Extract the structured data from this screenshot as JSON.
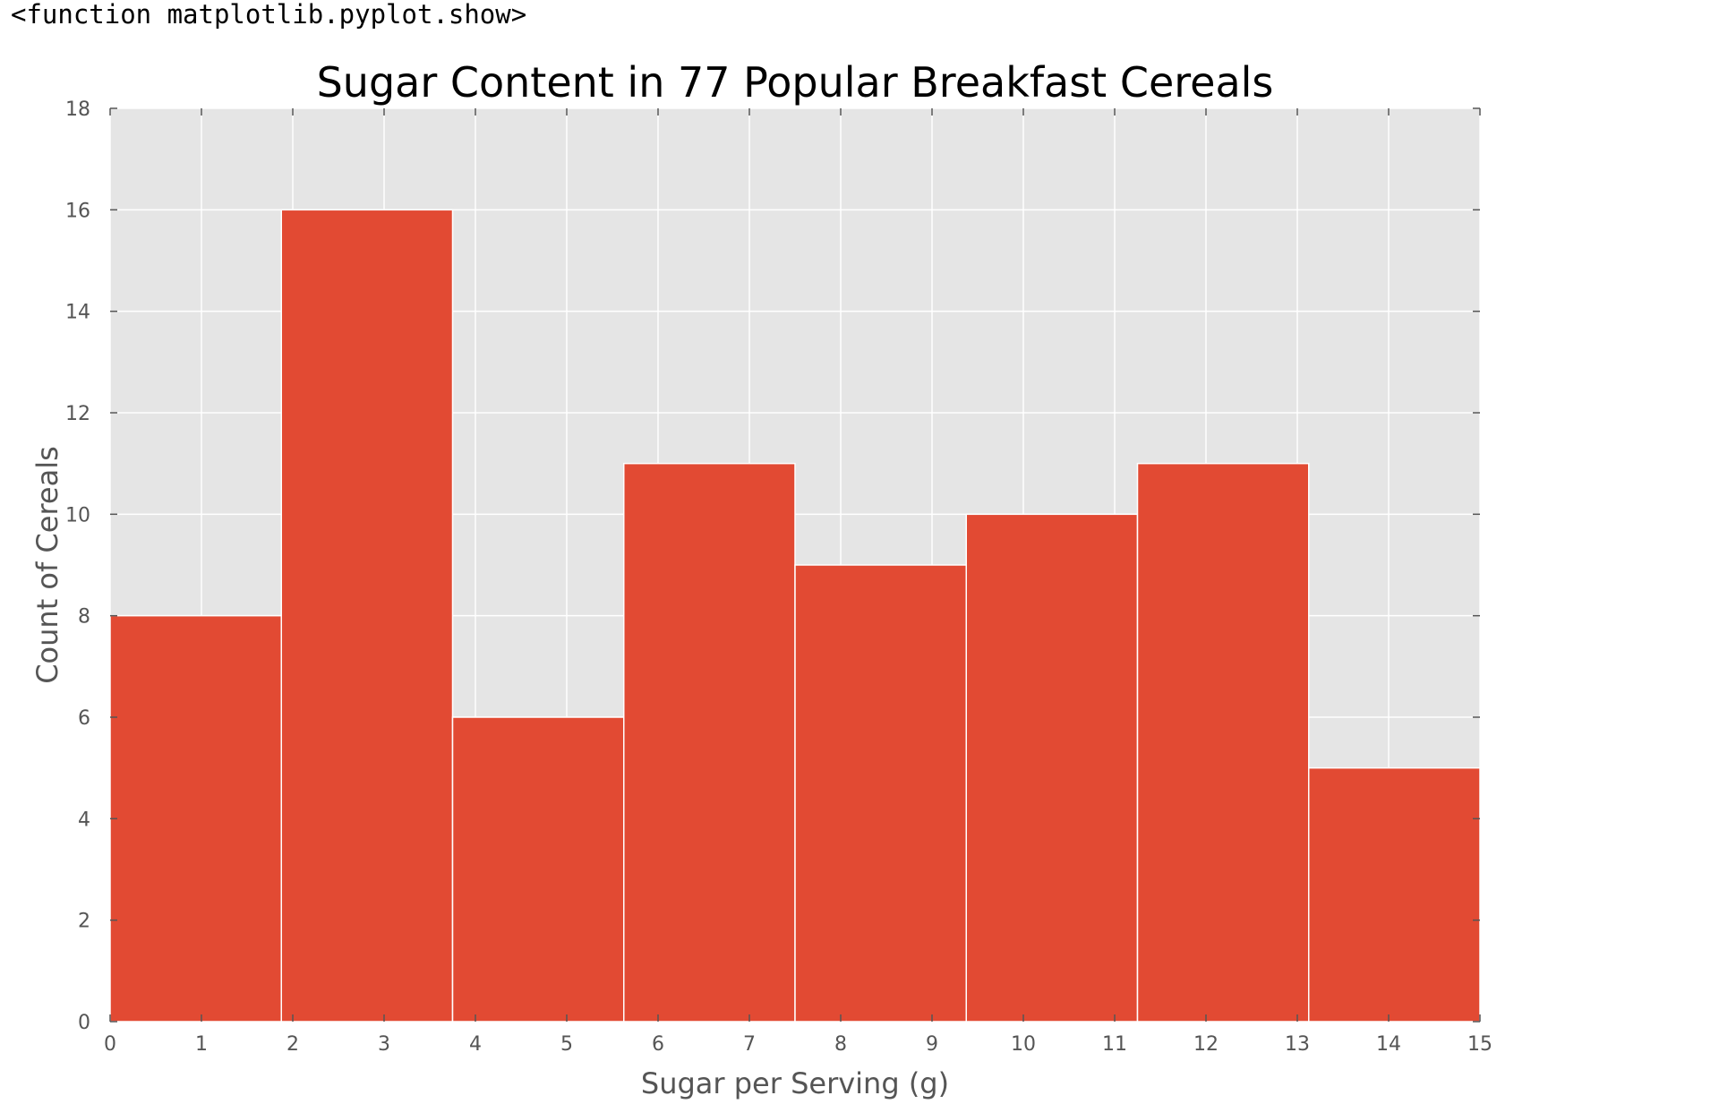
{
  "output": {
    "repr_text": "<function matplotlib.pyplot.show>"
  },
  "chart_data": {
    "type": "bar",
    "title": "Sugar Content in 77 Popular Breakfast Cereals",
    "xlabel": "Sugar per Serving (g)",
    "ylabel": "Count of Cereals",
    "xlim": [
      0,
      15
    ],
    "ylim": [
      0,
      18
    ],
    "xticks": [
      "0",
      "1",
      "2",
      "3",
      "4",
      "5",
      "6",
      "7",
      "8",
      "9",
      "10",
      "11",
      "12",
      "13",
      "14",
      "15"
    ],
    "yticks": [
      "0",
      "2",
      "4",
      "6",
      "8",
      "10",
      "12",
      "14",
      "16",
      "18"
    ],
    "bins": [
      {
        "start": 0.0,
        "end": 1.875,
        "count": 8
      },
      {
        "start": 1.875,
        "end": 3.75,
        "count": 16
      },
      {
        "start": 3.75,
        "end": 5.625,
        "count": 6
      },
      {
        "start": 5.625,
        "end": 7.5,
        "count": 11
      },
      {
        "start": 7.5,
        "end": 9.375,
        "count": 9
      },
      {
        "start": 9.375,
        "end": 11.25,
        "count": 10
      },
      {
        "start": 11.25,
        "end": 13.125,
        "count": 11
      },
      {
        "start": 13.125,
        "end": 15.0,
        "count": 5
      }
    ],
    "grid": true,
    "colors": {
      "bar": "#e24a33",
      "plot_background": "#e5e5e5",
      "grid": "#ffffff",
      "tick_text": "#555555"
    }
  }
}
